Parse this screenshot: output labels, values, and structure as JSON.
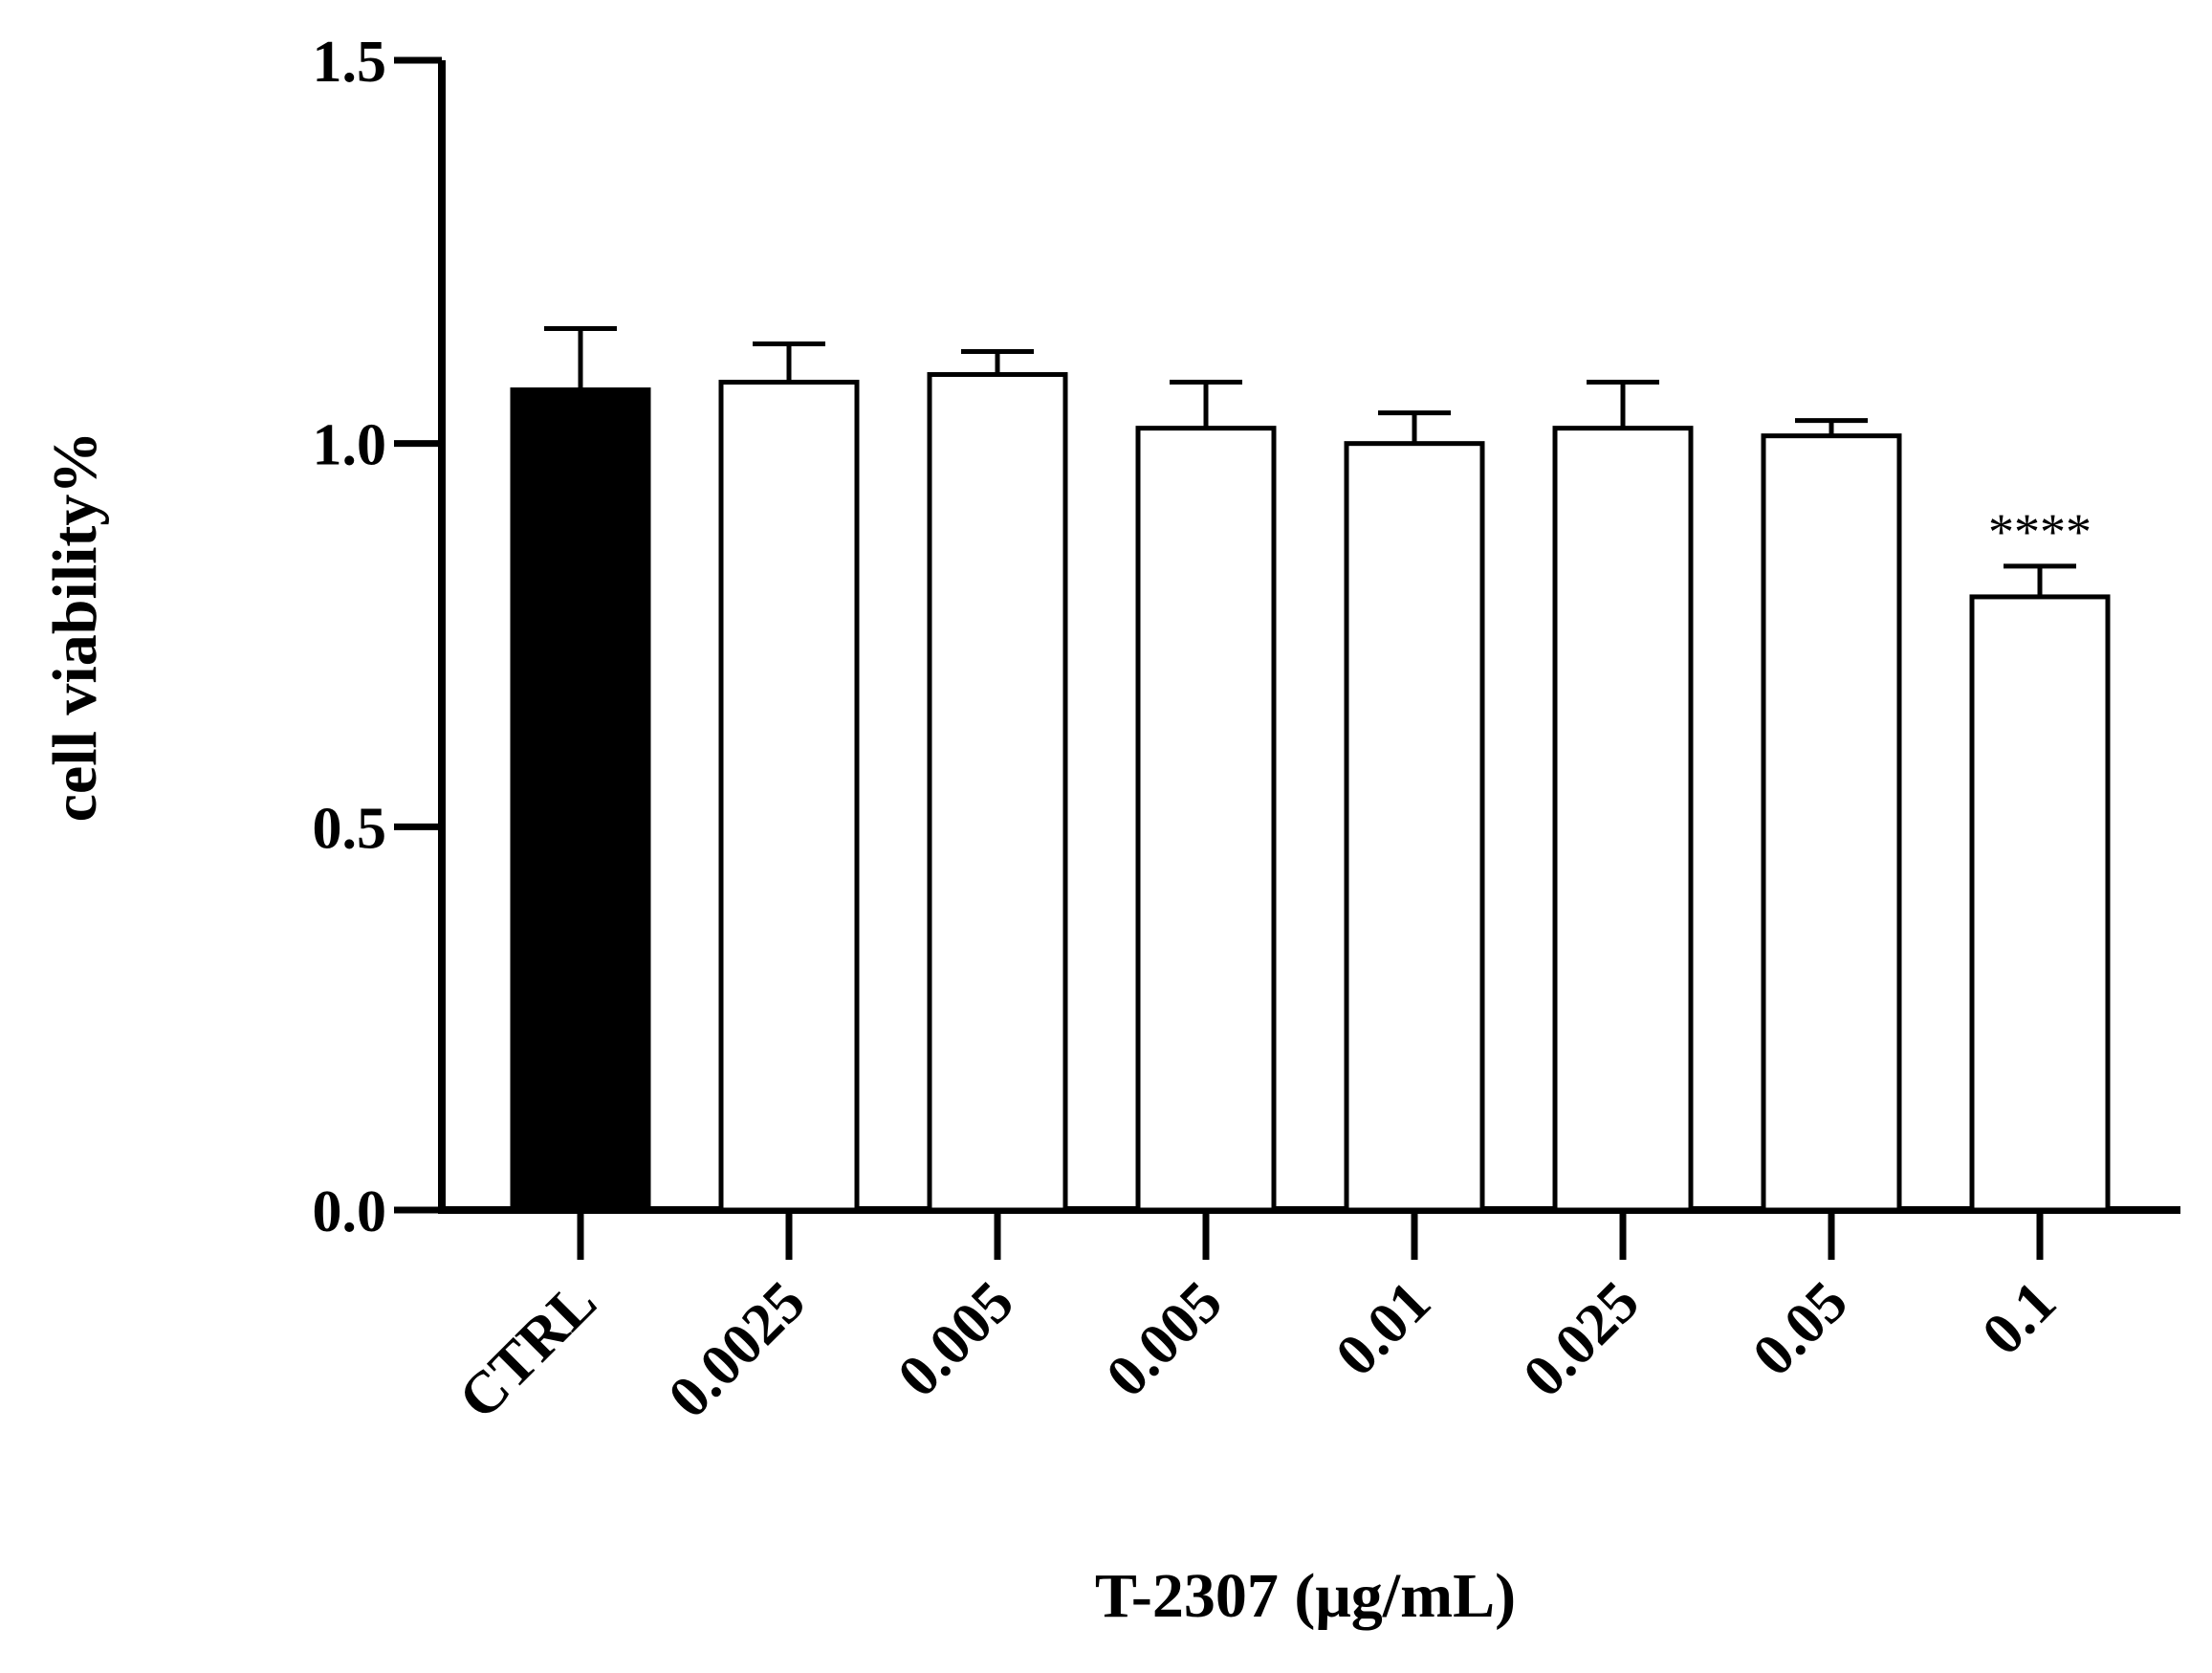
{
  "chart_data": {
    "type": "bar",
    "title": "",
    "xlabel": "T-2307 (μg/mL)",
    "ylabel": "cell viability%",
    "ylim": [
      0,
      1.5
    ],
    "yticks": [
      "0.0",
      "0.5",
      "1.0",
      "1.5"
    ],
    "grid": false,
    "legend": "none",
    "categories": [
      "CTRL",
      "0.0025",
      "0.005",
      "0.005",
      "0.01",
      "0.025",
      "0.05",
      "0.1"
    ],
    "values": [
      1.07,
      1.08,
      1.09,
      1.02,
      1.0,
      1.02,
      1.01,
      0.8
    ],
    "errors": [
      0.08,
      0.05,
      0.03,
      0.06,
      0.04,
      0.06,
      0.02,
      0.04
    ],
    "annotations": [
      "",
      "",
      "",
      "",
      "",
      "",
      "",
      "****"
    ],
    "colors": {
      "control_fill": "#000000",
      "treatment_fill": "#ffffff",
      "stroke": "#000000"
    }
  }
}
